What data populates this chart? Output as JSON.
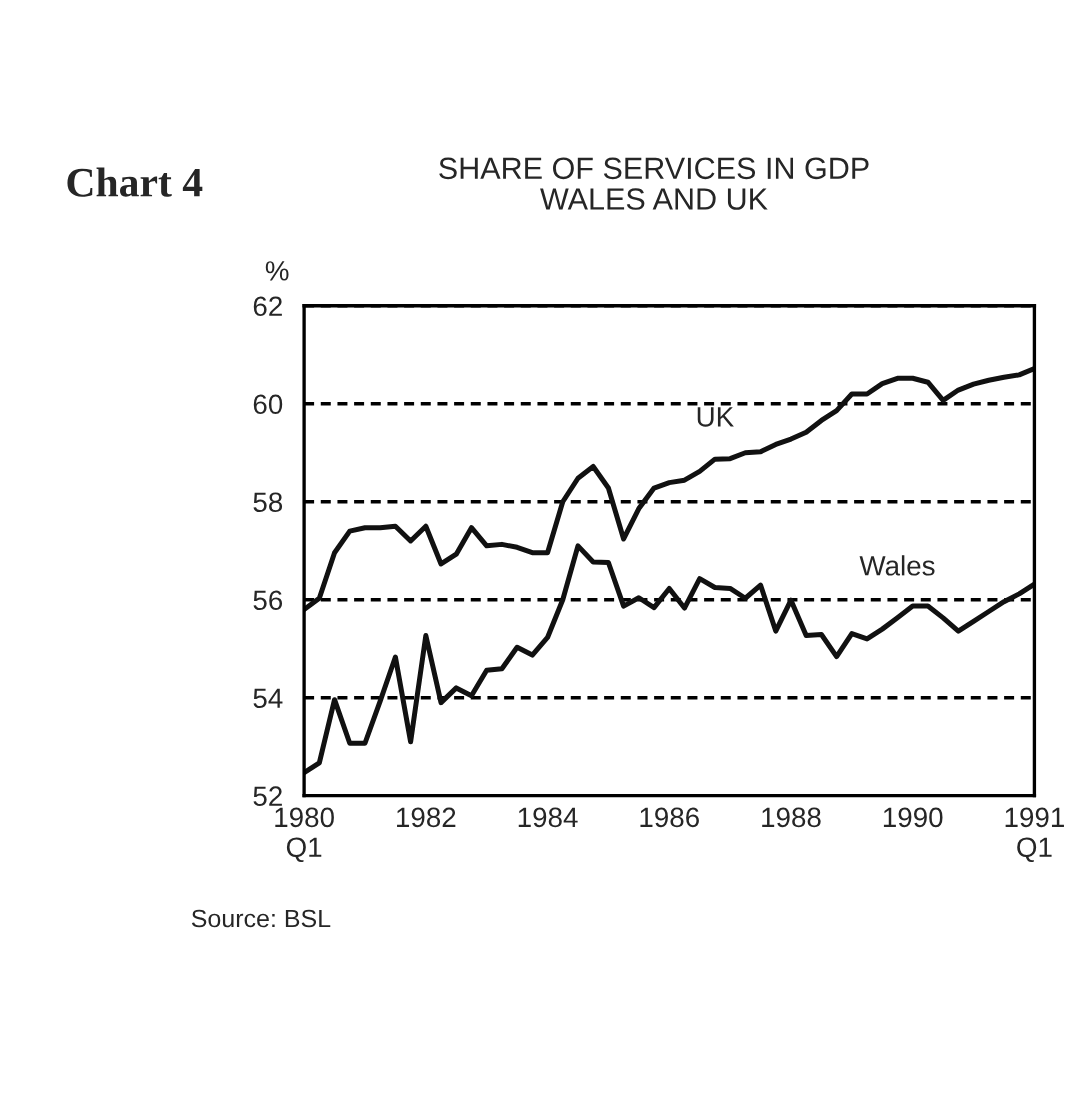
{
  "chart_data": {
    "type": "line",
    "title": "Chart 4",
    "subtitle": "SHARE OF SERVICES IN GDP\nWALES AND UK",
    "ylabel": "%",
    "categories": [
      "1980\nQ1",
      null,
      null,
      null,
      null,
      null,
      null,
      null,
      "1982",
      null,
      null,
      null,
      null,
      null,
      null,
      null,
      "1984",
      null,
      null,
      null,
      null,
      null,
      null,
      null,
      "1986",
      null,
      null,
      null,
      null,
      null,
      null,
      null,
      "1988",
      null,
      null,
      null,
      null,
      null,
      null,
      null,
      "1990",
      null,
      null,
      null,
      null,
      null,
      null,
      null,
      "1991\nQ1"
    ],
    "series": [
      {
        "name": "UK",
        "color": "#111111",
        "values": [
          55.8,
          56.03,
          56.96,
          57.4,
          57.47,
          57.47,
          57.5,
          57.2,
          57.5,
          56.73,
          56.93,
          57.47,
          57.1,
          57.13,
          57.07,
          56.96,
          56.96,
          58.0,
          58.48,
          58.72,
          58.28,
          57.24,
          57.86,
          58.28,
          58.39,
          58.44,
          58.62,
          58.87,
          58.88,
          59.0,
          59.02,
          59.17,
          59.28,
          59.42,
          59.66,
          59.86,
          60.2,
          60.2,
          60.41,
          60.52,
          60.52,
          60.44,
          60.07,
          60.28,
          60.4,
          60.48,
          60.54,
          60.59,
          60.72
        ]
      },
      {
        "name": "Wales",
        "color": "#111111",
        "values": [
          52.47,
          52.67,
          53.96,
          53.07,
          53.07,
          53.93,
          54.83,
          53.1,
          55.27,
          53.9,
          54.2,
          54.04,
          54.56,
          54.59,
          55.03,
          54.87,
          55.23,
          56.0,
          57.1,
          56.77,
          56.76,
          55.87,
          56.04,
          55.84,
          56.23,
          55.83,
          56.43,
          56.25,
          56.23,
          56.03,
          56.3,
          55.36,
          55.99,
          55.27,
          55.29,
          54.84,
          55.31,
          55.2,
          55.4,
          55.63,
          55.87,
          55.87,
          55.63,
          55.36,
          55.56,
          55.76,
          55.96,
          56.12,
          56.32
        ]
      }
    ],
    "ylim": [
      52,
      62
    ],
    "yticks": [
      52,
      54,
      56,
      58,
      60,
      62
    ],
    "grid": "y",
    "line_style": "solid",
    "marker": "none",
    "legend": false,
    "annotations": [
      "Source: BSL"
    ]
  }
}
